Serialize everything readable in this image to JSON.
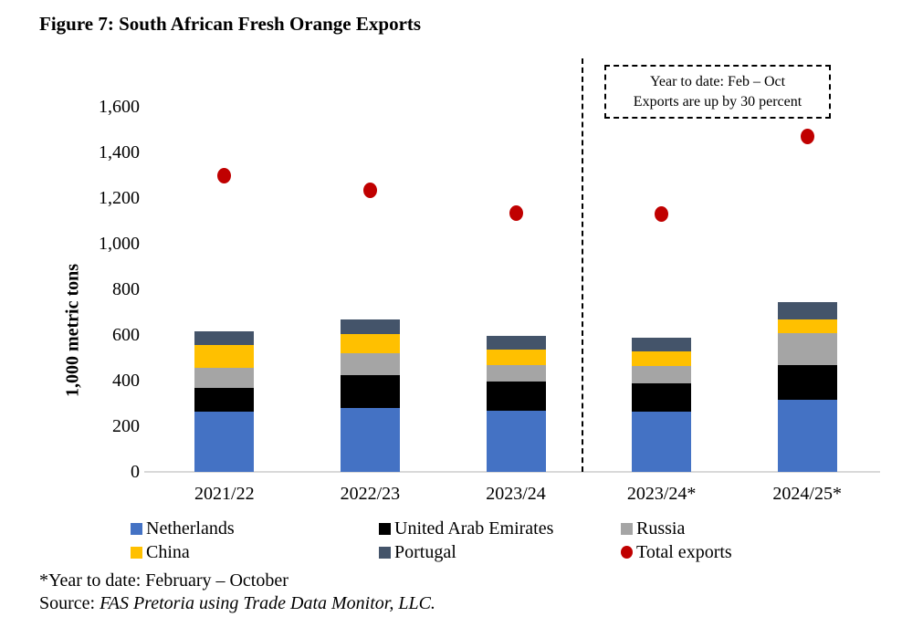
{
  "figure": {
    "title": "Figure 7: South African Fresh Orange Exports",
    "footnote": "*Year to date: February – October",
    "source_prefix": "Source: ",
    "source_text": "FAS Pretoria using Trade Data Monitor, LLC."
  },
  "annotation": {
    "line1": "Year to date: Feb – Oct",
    "line2": "Exports are up by 30 percent"
  },
  "chart_data": {
    "type": "bar",
    "stacked": true,
    "title": "Figure 7: South African Fresh Orange Exports",
    "ylabel": "1,000 metric tons",
    "xlabel": "",
    "ylim": [
      0,
      1600
    ],
    "ytick_step": 200,
    "yticks": [
      {
        "value": 0,
        "label": "0"
      },
      {
        "value": 200,
        "label": "200"
      },
      {
        "value": 400,
        "label": "400"
      },
      {
        "value": 600,
        "label": "600"
      },
      {
        "value": 800,
        "label": "800"
      },
      {
        "value": 1000,
        "label": "1,000"
      },
      {
        "value": 1200,
        "label": "1,200"
      },
      {
        "value": 1400,
        "label": "1,400"
      },
      {
        "value": 1600,
        "label": "1,600"
      }
    ],
    "grid": false,
    "categories": [
      "2021/22",
      "2022/23",
      "2023/24",
      "2023/24*",
      "2024/25*"
    ],
    "series": [
      {
        "name": "Netherlands",
        "color": "#4472C4",
        "values": [
          265,
          280,
          270,
          265,
          315
        ]
      },
      {
        "name": "United Arab Emirates",
        "color": "#000000",
        "values": [
          105,
          145,
          125,
          125,
          155
        ]
      },
      {
        "name": "Russia",
        "color": "#A5A5A5",
        "values": [
          85,
          95,
          75,
          75,
          140
        ]
      },
      {
        "name": "China",
        "color": "#FFC000",
        "values": [
          100,
          85,
          65,
          65,
          60
        ]
      },
      {
        "name": "Portugal",
        "color": "#44546A",
        "values": [
          60,
          65,
          60,
          60,
          75
        ]
      }
    ],
    "scatter_series": {
      "name": "Total exports",
      "color": "#C00000",
      "values": [
        1300,
        1235,
        1135,
        1130,
        1470
      ]
    },
    "separator_after_category_index": 2,
    "legend_position": "bottom",
    "legend_rows": [
      [
        {
          "label": "Netherlands",
          "color": "#4472C4",
          "marker": "square"
        },
        {
          "label": "United Arab Emirates",
          "color": "#000000",
          "marker": "square"
        },
        {
          "label": "Russia",
          "color": "#A5A5A5",
          "marker": "square"
        }
      ],
      [
        {
          "label": "China",
          "color": "#FFC000",
          "marker": "square"
        },
        {
          "label": "Portugal",
          "color": "#44546A",
          "marker": "square"
        },
        {
          "label": "Total exports",
          "color": "#C00000",
          "marker": "circle"
        }
      ]
    ],
    "axis_line_color": "#D9D9D9"
  }
}
